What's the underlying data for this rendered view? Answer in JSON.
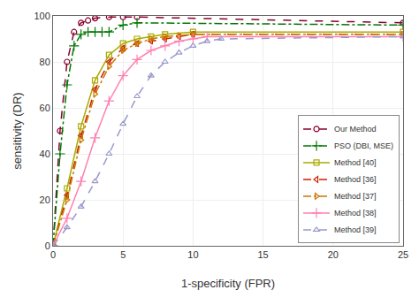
{
  "chart_data": {
    "type": "line",
    "xlabel": "1-specificity (FPR)",
    "ylabel": "sensitivity (DR)",
    "xlim": [
      0,
      25
    ],
    "ylim": [
      0,
      100
    ],
    "xticks": [
      0,
      5,
      10,
      15,
      20,
      25
    ],
    "yticks": [
      0,
      20,
      40,
      60,
      80,
      100
    ],
    "grid": true,
    "legend": "lower right",
    "series": [
      {
        "name": "Our Method",
        "color": "#8b0030",
        "line_style": "dashed",
        "marker": "circle",
        "x": [
          0,
          0.5,
          1.0,
          1.5,
          2.0,
          2.5,
          3.0,
          4.0,
          5.0,
          6.0,
          25
        ],
        "values": [
          0,
          50,
          80,
          93,
          97,
          98,
          99,
          99.5,
          99.5,
          99.5,
          97
        ]
      },
      {
        "name": "PSO (DBI, MSE)",
        "color": "#007700",
        "line_style": "dashdot",
        "marker": "plus",
        "x": [
          0,
          0.5,
          1.0,
          1.5,
          2.0,
          2.5,
          3.0,
          3.5,
          4.0,
          5.0,
          6.0,
          25
        ],
        "values": [
          0,
          40,
          70,
          87,
          92,
          93,
          93,
          93,
          93,
          96,
          97,
          96
        ]
      },
      {
        "name": "Method [40]",
        "color": "#aaaa00",
        "line_style": "solid",
        "marker": "square",
        "x": [
          0,
          1,
          2,
          3,
          4,
          5,
          6,
          7,
          8,
          10,
          25
        ],
        "values": [
          0,
          25,
          52,
          72,
          83,
          88,
          90,
          91,
          92,
          93,
          93
        ]
      },
      {
        "name": "Method [36]",
        "color": "#cc2200",
        "line_style": "dashed",
        "marker": "triangle-left",
        "x": [
          0,
          1,
          2,
          3,
          4,
          5,
          6,
          7,
          8,
          9,
          10,
          25
        ],
        "values": [
          0,
          22,
          48,
          68,
          80,
          86,
          88,
          89,
          90,
          91,
          92,
          92
        ]
      },
      {
        "name": "Method [37]",
        "color": "#cc7700",
        "line_style": "dashdot",
        "marker": "triangle-right",
        "x": [
          0,
          1,
          2,
          3,
          4,
          5,
          6,
          7,
          8,
          9,
          10,
          25
        ],
        "values": [
          0,
          20,
          46,
          66,
          78,
          85,
          88,
          90,
          91,
          91.5,
          92,
          92
        ]
      },
      {
        "name": "Method [38]",
        "color": "#ff80b0",
        "line_style": "solid",
        "marker": "plus",
        "x": [
          0,
          1,
          2,
          3,
          4,
          5,
          6,
          7,
          8,
          9,
          10,
          11,
          25
        ],
        "values": [
          0,
          12,
          28,
          47,
          63,
          74,
          81,
          85,
          87,
          89,
          90,
          91,
          91
        ]
      },
      {
        "name": "Method [39]",
        "color": "#9999cc",
        "line_style": "dashed",
        "marker": "triangle-up",
        "x": [
          0,
          1,
          2,
          3,
          4,
          5,
          6,
          7,
          8,
          9,
          10,
          11,
          12,
          25
        ],
        "values": [
          0,
          8,
          17,
          28,
          40,
          53,
          65,
          74,
          80,
          84,
          87,
          89,
          90,
          91
        ]
      }
    ]
  }
}
